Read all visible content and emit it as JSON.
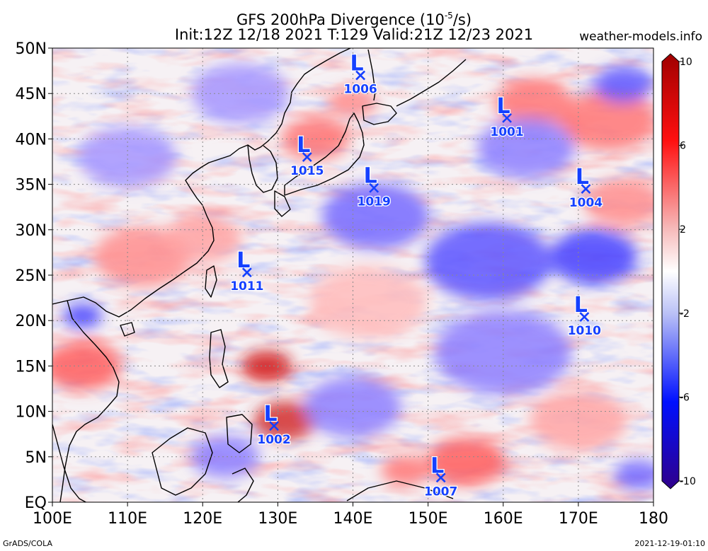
{
  "header": {
    "title_main": "GFS 200hPa Divergence (10",
    "title_exp": "-5",
    "title_unit": "/s)",
    "subtitle": "Init:12Z 12/18 2021 T:129 Valid:21Z 12/23 2021",
    "site": "weather-models.info"
  },
  "axes": {
    "lat_labels": [
      "50N",
      "45N",
      "40N",
      "35N",
      "30N",
      "25N",
      "20N",
      "15N",
      "10N",
      "5N",
      "EQ"
    ],
    "lat_values": [
      50,
      45,
      40,
      35,
      30,
      25,
      20,
      15,
      10,
      5,
      0
    ],
    "lon_labels": [
      "100E",
      "110E",
      "120E",
      "130E",
      "140E",
      "150E",
      "160E",
      "170E",
      "180"
    ],
    "lon_values": [
      100,
      110,
      120,
      130,
      140,
      150,
      160,
      170,
      180
    ],
    "lon_range": [
      100,
      180
    ],
    "lat_range": [
      0,
      50
    ]
  },
  "colorbar": {
    "labels": [
      "10",
      "6",
      "2",
      "-2",
      "-6",
      "-10"
    ],
    "values": [
      10,
      6,
      2,
      -2,
      -6,
      -10
    ],
    "colors": [
      "#b00000",
      "#ff2a2a",
      "#f0a0a0",
      "#ffffff",
      "#a0a8f0",
      "#0a20ff",
      "#300090"
    ]
  },
  "lows": [
    {
      "label": "L",
      "pressure": "1006",
      "lon": 141,
      "lat": 47
    },
    {
      "label": "L",
      "pressure": "1001",
      "lon": 160.5,
      "lat": 42.3
    },
    {
      "label": "L",
      "pressure": "1015",
      "lon": 133.9,
      "lat": 38
    },
    {
      "label": "L",
      "pressure": "1019",
      "lon": 142.8,
      "lat": 34.6
    },
    {
      "label": "L",
      "pressure": "1004",
      "lon": 171,
      "lat": 34.5
    },
    {
      "label": "L",
      "pressure": "1011",
      "lon": 125.9,
      "lat": 25.3
    },
    {
      "label": "L",
      "pressure": "1010",
      "lon": 170.8,
      "lat": 20.4
    },
    {
      "label": "L",
      "pressure": "1002",
      "lon": 129.5,
      "lat": 8.4
    },
    {
      "label": "L",
      "pressure": "1007",
      "lon": 151.7,
      "lat": 2.7
    }
  ],
  "field_blobs": [
    {
      "lon": 128.5,
      "lat": 15.0,
      "r": 2.6,
      "value": 9
    },
    {
      "lon": 131.0,
      "lat": 9.0,
      "r": 3.2,
      "value": 8
    },
    {
      "lon": 104.0,
      "lat": 15.0,
      "r": 4.0,
      "value": 6
    },
    {
      "lon": 104.0,
      "lat": 20.5,
      "r": 2.0,
      "value": -7
    },
    {
      "lon": 135.0,
      "lat": 40.0,
      "r": 3.5,
      "value": 5
    },
    {
      "lon": 140.0,
      "lat": 44.0,
      "r": 2.5,
      "value": 4
    },
    {
      "lon": 155.0,
      "lat": 4.5,
      "r": 4.0,
      "value": 6
    },
    {
      "lon": 147.0,
      "lat": 3.5,
      "r": 2.5,
      "value": 5
    },
    {
      "lon": 164.0,
      "lat": 44.0,
      "r": 4.0,
      "value": 5
    },
    {
      "lon": 174.0,
      "lat": 42.0,
      "r": 5.0,
      "value": 5
    },
    {
      "lon": 176.0,
      "lat": 33.0,
      "r": 4.0,
      "value": 4
    },
    {
      "lon": 112.0,
      "lat": 27.0,
      "r": 5.0,
      "value": 4
    },
    {
      "lon": 120.0,
      "lat": 29.0,
      "r": 4.0,
      "value": 3
    },
    {
      "lon": 143.0,
      "lat": 31.5,
      "r": 5.5,
      "value": -5
    },
    {
      "lon": 158.0,
      "lat": 26.5,
      "r": 6.5,
      "value": -6
    },
    {
      "lon": 172.0,
      "lat": 27.0,
      "r": 4.5,
      "value": -7
    },
    {
      "lon": 163.0,
      "lat": 39.0,
      "r": 5.0,
      "value": -4
    },
    {
      "lon": 160.0,
      "lat": 16.5,
      "r": 7.0,
      "value": -4
    },
    {
      "lon": 140.0,
      "lat": 10.5,
      "r": 5.0,
      "value": -4
    },
    {
      "lon": 123.0,
      "lat": 5.0,
      "r": 3.5,
      "value": -4
    },
    {
      "lon": 176.0,
      "lat": 46.0,
      "r": 3.0,
      "value": -6
    },
    {
      "lon": 110.0,
      "lat": 38.0,
      "r": 5.0,
      "value": -3
    },
    {
      "lon": 125.0,
      "lat": 45.0,
      "r": 5.0,
      "value": -3
    },
    {
      "lon": 170.0,
      "lat": 9.0,
      "r": 5.0,
      "value": 3
    },
    {
      "lon": 142.0,
      "lat": 22.0,
      "r": 6.0,
      "value": 2
    },
    {
      "lon": 178.0,
      "lat": 3.0,
      "r": 2.5,
      "value": -5
    }
  ],
  "footer": {
    "left": "GrADS/COLA",
    "right": "2021-12-19-01:10"
  }
}
